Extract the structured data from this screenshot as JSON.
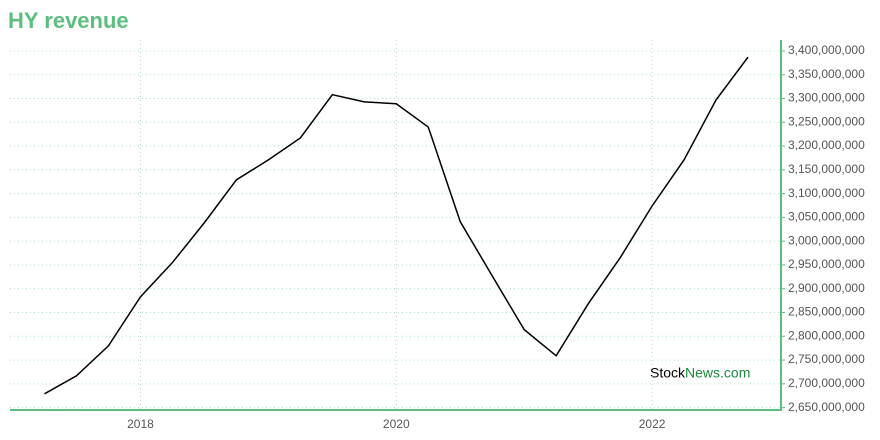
{
  "chart_data": {
    "type": "line",
    "title": "HY revenue",
    "x": [
      2017.25,
      2017.5,
      2017.75,
      2018.0,
      2018.25,
      2018.5,
      2018.75,
      2019.0,
      2019.25,
      2019.5,
      2019.75,
      2020.0,
      2020.25,
      2020.5,
      2020.75,
      2021.0,
      2021.25,
      2021.5,
      2021.75,
      2022.0,
      2022.25,
      2022.5,
      2022.75
    ],
    "series": [
      {
        "name": "HY revenue",
        "color": "#000000",
        "values": [
          2679000000,
          2717000000,
          2780000000,
          2883000000,
          2955000000,
          3039000000,
          3129000000,
          3171000000,
          3217000000,
          3308000000,
          3293000000,
          3289000000,
          3240000000,
          3041000000,
          2927000000,
          2814000000,
          2759000000,
          2868000000,
          2965000000,
          3074000000,
          3171000000,
          3297000000,
          3387000000
        ]
      }
    ],
    "xlim": [
      2016.98,
      2023.0
    ],
    "xticks": [
      2018,
      2020,
      2022
    ],
    "ylim": [
      2645000000,
      3423000000
    ],
    "yticks": [
      {
        "value": 2650000000,
        "label": "2,650,000,000"
      },
      {
        "value": 2700000000,
        "label": "2,700,000,000"
      },
      {
        "value": 2750000000,
        "label": "2,750,000,000"
      },
      {
        "value": 2800000000,
        "label": "2,800,000,000"
      },
      {
        "value": 2850000000,
        "label": "2,850,000,000"
      },
      {
        "value": 2900000000,
        "label": "2,900,000,000"
      },
      {
        "value": 2950000000,
        "label": "2,950,000,000"
      },
      {
        "value": 3000000000,
        "label": "3,000,000,000"
      },
      {
        "value": 3050000000,
        "label": "3,050,000,000"
      },
      {
        "value": 3100000000,
        "label": "3,100,000,000"
      },
      {
        "value": 3150000000,
        "label": "3,150,000,000"
      },
      {
        "value": 3200000000,
        "label": "3,200,000,000"
      },
      {
        "value": 3250000000,
        "label": "3,250,000,000"
      },
      {
        "value": 3300000000,
        "label": "3,300,000,000"
      },
      {
        "value": 3350000000,
        "label": "3,350,000,000"
      },
      {
        "value": 3400000000,
        "label": "3,400,000,000"
      }
    ],
    "grid": true,
    "axis_color": "#5cbf7f",
    "watermark": {
      "part1": "Stock",
      "part2": "News.com"
    }
  }
}
